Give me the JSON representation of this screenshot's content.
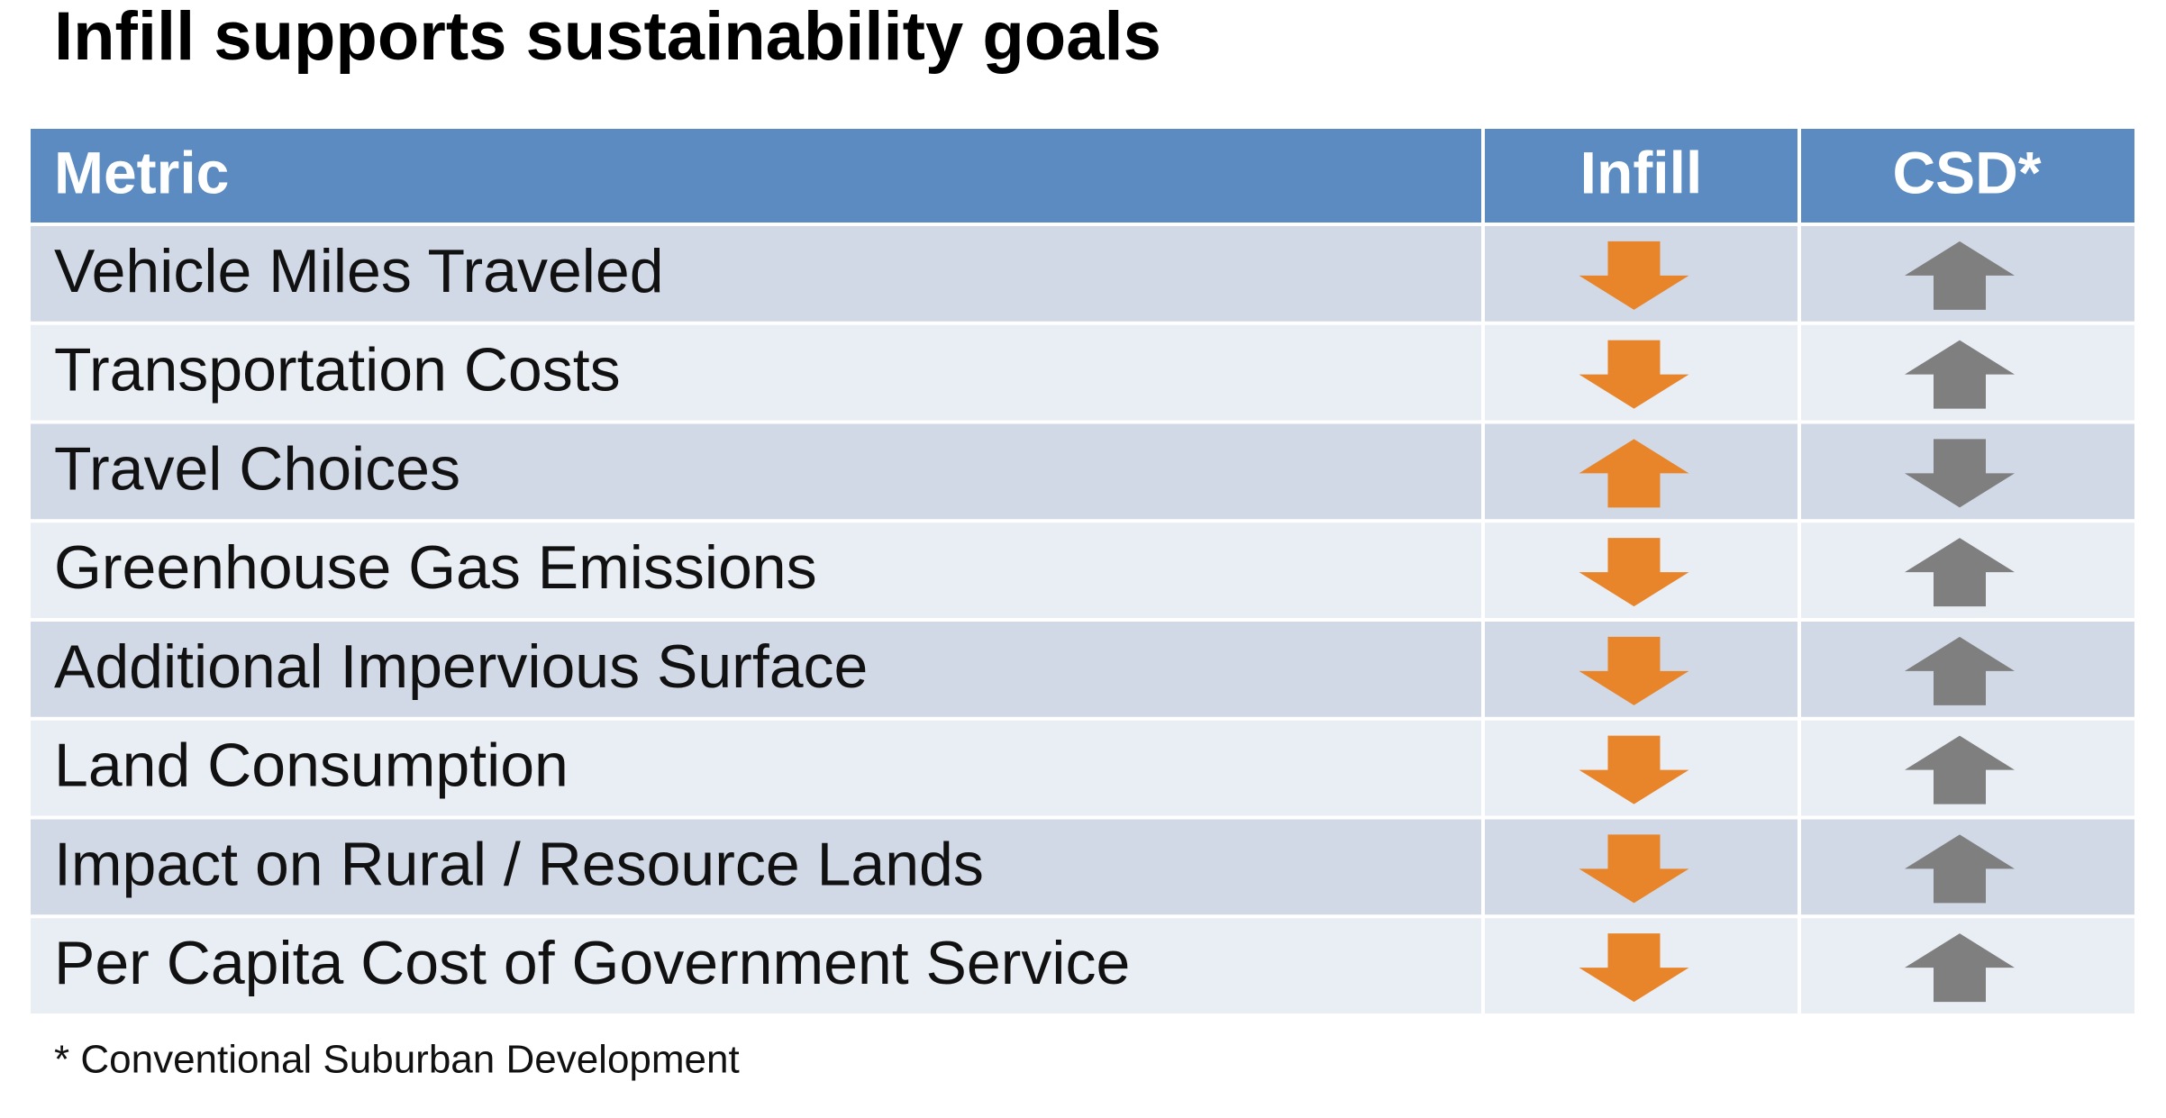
{
  "title": "Infill supports sustainability goals",
  "table": {
    "header": [
      "Metric",
      "Infill",
      "CSD*"
    ],
    "rows": [
      [
        "Vehicle Miles Traveled",
        "down",
        "up"
      ],
      [
        "Transportation Costs",
        "down",
        "up"
      ],
      [
        "Travel Choices",
        "up",
        "down"
      ],
      [
        "Greenhouse Gas Emissions",
        "down",
        "up"
      ],
      [
        "Additional Impervious Surface",
        "down",
        "up"
      ],
      [
        "Land Consumption",
        "down",
        "up"
      ],
      [
        "Impact on Rural / Resource Lands",
        "down",
        "up"
      ],
      [
        "Per Capita Cost of Government Service",
        "down",
        "up"
      ]
    ],
    "arrow_colors": [
      "#e8852b",
      "#7f7f7f"
    ]
  },
  "footnote": "* Conventional Suburban Development"
}
